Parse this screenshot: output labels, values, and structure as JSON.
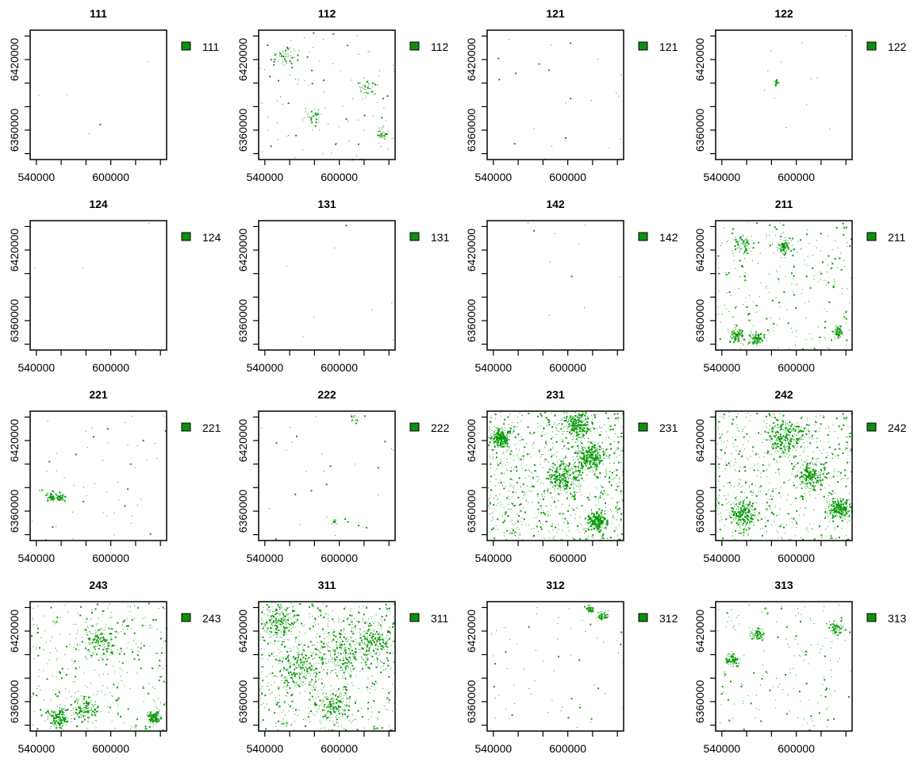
{
  "figure": {
    "fill_color": "#0a9a0a",
    "legend_swatch_color": "#0f8f0f"
  },
  "chart_data": [
    {
      "type": "raster",
      "title": "111",
      "legend": [
        "111"
      ],
      "x_ticks": [
        540000,
        600000
      ],
      "y_ticks": [
        6360000,
        6420000
      ],
      "xlim": [
        535000,
        645000
      ],
      "ylim": [
        6335000,
        6445000
      ]
    },
    {
      "type": "raster",
      "title": "112",
      "legend": [
        "112"
      ],
      "x_ticks": [
        540000,
        600000
      ],
      "y_ticks": [
        6360000,
        6420000
      ],
      "xlim": [
        535000,
        645000
      ],
      "ylim": [
        6335000,
        6445000
      ]
    },
    {
      "type": "raster",
      "title": "121",
      "legend": [
        "121"
      ],
      "x_ticks": [
        540000,
        600000
      ],
      "y_ticks": [
        6360000,
        6420000
      ],
      "xlim": [
        535000,
        645000
      ],
      "ylim": [
        6335000,
        6445000
      ]
    },
    {
      "type": "raster",
      "title": "122",
      "legend": [
        "122"
      ],
      "x_ticks": [
        540000,
        600000
      ],
      "y_ticks": [
        6360000,
        6420000
      ],
      "xlim": [
        535000,
        645000
      ],
      "ylim": [
        6335000,
        6445000
      ]
    },
    {
      "type": "raster",
      "title": "124",
      "legend": [
        "124"
      ],
      "x_ticks": [
        540000,
        600000
      ],
      "y_ticks": [
        6360000,
        6420000
      ],
      "xlim": [
        535000,
        645000
      ],
      "ylim": [
        6335000,
        6445000
      ]
    },
    {
      "type": "raster",
      "title": "131",
      "legend": [
        "131"
      ],
      "x_ticks": [
        540000,
        600000
      ],
      "y_ticks": [
        6360000,
        6420000
      ],
      "xlim": [
        535000,
        645000
      ],
      "ylim": [
        6335000,
        6445000
      ]
    },
    {
      "type": "raster",
      "title": "142",
      "legend": [
        "142"
      ],
      "x_ticks": [
        540000,
        600000
      ],
      "y_ticks": [
        6360000,
        6420000
      ],
      "xlim": [
        535000,
        645000
      ],
      "ylim": [
        6335000,
        6445000
      ]
    },
    {
      "type": "raster",
      "title": "211",
      "legend": [
        "211"
      ],
      "x_ticks": [
        540000,
        600000
      ],
      "y_ticks": [
        6360000,
        6420000
      ],
      "xlim": [
        535000,
        645000
      ],
      "ylim": [
        6335000,
        6445000
      ]
    },
    {
      "type": "raster",
      "title": "221",
      "legend": [
        "221"
      ],
      "x_ticks": [
        540000,
        600000
      ],
      "y_ticks": [
        6360000,
        6420000
      ],
      "xlim": [
        535000,
        645000
      ],
      "ylim": [
        6335000,
        6445000
      ]
    },
    {
      "type": "raster",
      "title": "222",
      "legend": [
        "222"
      ],
      "x_ticks": [
        540000,
        600000
      ],
      "y_ticks": [
        6360000,
        6420000
      ],
      "xlim": [
        535000,
        645000
      ],
      "ylim": [
        6335000,
        6445000
      ]
    },
    {
      "type": "raster",
      "title": "231",
      "legend": [
        "231"
      ],
      "x_ticks": [
        540000,
        600000
      ],
      "y_ticks": [
        6360000,
        6420000
      ],
      "xlim": [
        535000,
        645000
      ],
      "ylim": [
        6335000,
        6445000
      ]
    },
    {
      "type": "raster",
      "title": "242",
      "legend": [
        "242"
      ],
      "x_ticks": [
        540000,
        600000
      ],
      "y_ticks": [
        6360000,
        6420000
      ],
      "xlim": [
        535000,
        645000
      ],
      "ylim": [
        6335000,
        6445000
      ]
    },
    {
      "type": "raster",
      "title": "243",
      "legend": [
        "243"
      ],
      "x_ticks": [
        540000,
        600000
      ],
      "y_ticks": [
        6360000,
        6420000
      ],
      "xlim": [
        535000,
        645000
      ],
      "ylim": [
        6335000,
        6445000
      ]
    },
    {
      "type": "raster",
      "title": "311",
      "legend": [
        "311"
      ],
      "x_ticks": [
        540000,
        600000
      ],
      "y_ticks": [
        6360000,
        6420000
      ],
      "xlim": [
        535000,
        645000
      ],
      "ylim": [
        6335000,
        6445000
      ]
    },
    {
      "type": "raster",
      "title": "312",
      "legend": [
        "312"
      ],
      "x_ticks": [
        540000,
        600000
      ],
      "y_ticks": [
        6360000,
        6420000
      ],
      "xlim": [
        535000,
        645000
      ],
      "ylim": [
        6335000,
        6445000
      ]
    },
    {
      "type": "raster",
      "title": "313",
      "legend": [
        "313"
      ],
      "x_ticks": [
        540000,
        600000
      ],
      "y_ticks": [
        6360000,
        6420000
      ],
      "xlim": [
        535000,
        645000
      ],
      "ylim": [
        6335000,
        6445000
      ]
    }
  ]
}
